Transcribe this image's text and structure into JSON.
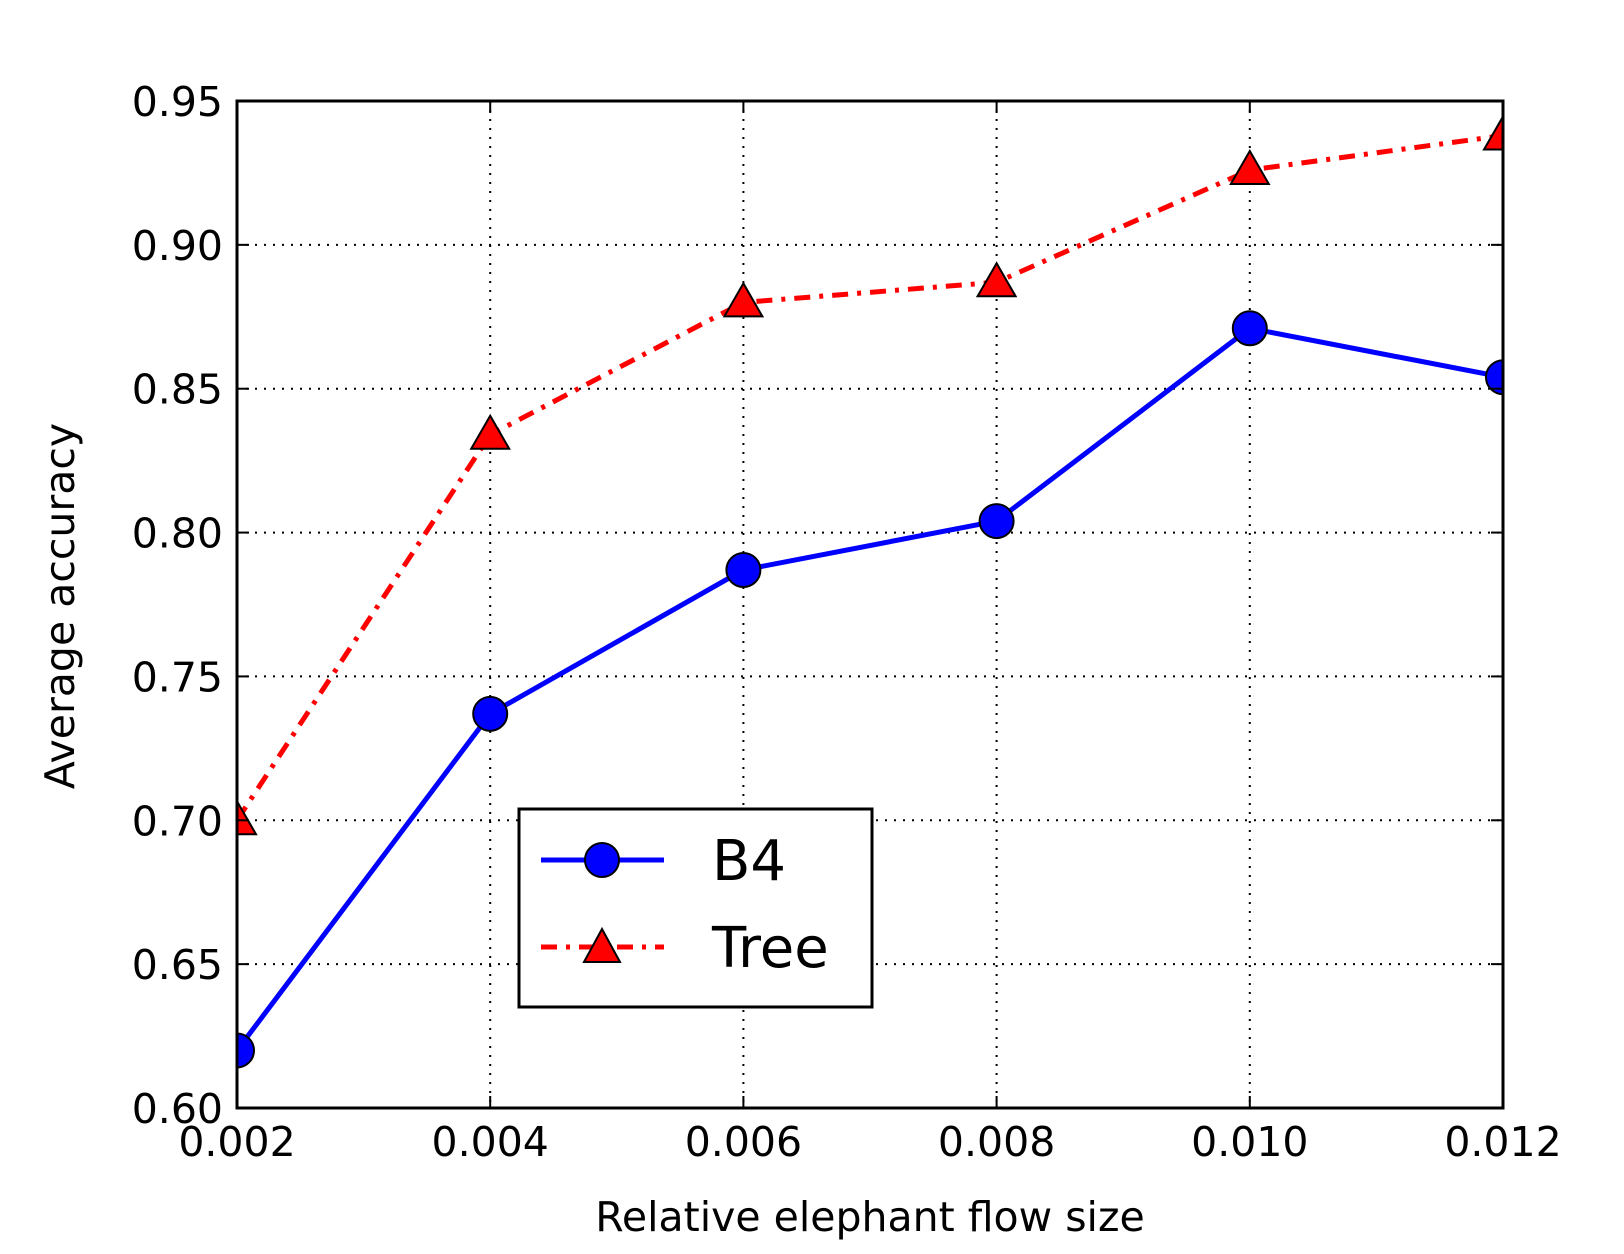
{
  "chart_data": {
    "type": "line",
    "title": "",
    "xlabel": "Relative elephant flow size",
    "ylabel": "Average accuracy",
    "x": [
      0.002,
      0.004,
      0.006,
      0.008,
      0.01,
      0.012
    ],
    "x_tick_labels": [
      "0.002",
      "0.004",
      "0.006",
      "0.008",
      "0.010",
      "0.012"
    ],
    "y_ticks": [
      0.6,
      0.65,
      0.7,
      0.75,
      0.8,
      0.85,
      0.9,
      0.95
    ],
    "y_tick_labels": [
      "0.60",
      "0.65",
      "0.70",
      "0.75",
      "0.80",
      "0.85",
      "0.90",
      "0.95"
    ],
    "xlim": [
      0.002,
      0.012
    ],
    "ylim": [
      0.6,
      0.95
    ],
    "grid": true,
    "legend_position": "lower-center",
    "series": [
      {
        "name": "B4",
        "values": [
          0.62,
          0.737,
          0.787,
          0.804,
          0.871,
          0.854
        ],
        "color": "#0000ff",
        "marker": "circle",
        "line_style": "solid"
      },
      {
        "name": "Tree",
        "values": [
          0.7,
          0.834,
          0.88,
          0.887,
          0.926,
          0.938
        ],
        "color": "#ff0000",
        "marker": "triangle",
        "line_style": "dash-dot"
      }
    ]
  }
}
